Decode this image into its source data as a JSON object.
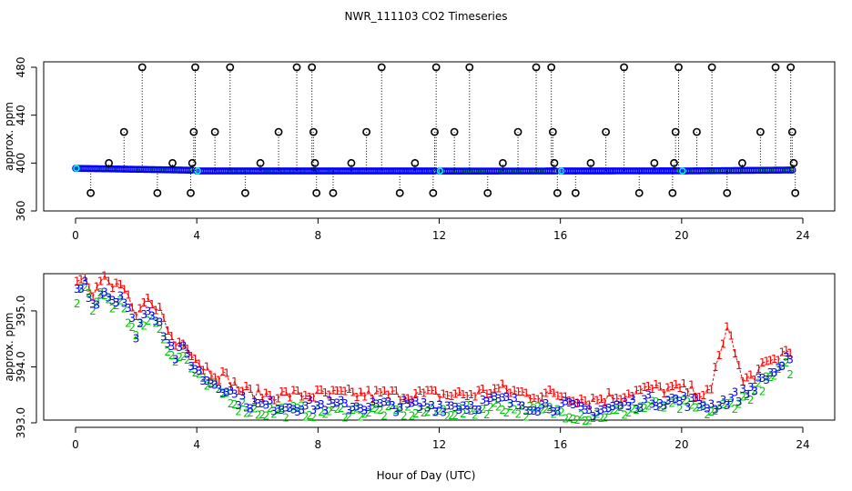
{
  "title": "NWR_111103  CO2 Timeseries",
  "xlabel": "Hour of Day (UTC)",
  "colors": {
    "series1": "#ff0000",
    "series2": "#00c800",
    "series3": "#0000ff",
    "mid": "#00ffff",
    "frame": "#000000"
  },
  "chart_data": [
    {
      "type": "scatter",
      "panel": "top",
      "ylabel": "approx. ppm",
      "xlim": [
        0,
        24
      ],
      "ylim": [
        360,
        480
      ],
      "xticks": [
        "0",
        "4",
        "8",
        "12",
        "16",
        "20",
        "24"
      ],
      "yticks": [
        "360",
        "400",
        "440",
        "480"
      ],
      "baseline_segments": [
        {
          "x0": 0.0,
          "x1": 3.9,
          "y0": 395.6,
          "y1": 394.0
        },
        {
          "x0": 4.0,
          "x1": 11.9,
          "y0": 393.4,
          "y1": 393.4
        },
        {
          "x0": 12.0,
          "x1": 15.9,
          "y0": 393.3,
          "y1": 393.4
        },
        {
          "x0": 16.0,
          "x1": 19.9,
          "y0": 393.4,
          "y1": 393.5
        },
        {
          "x0": 20.0,
          "x1": 23.7,
          "y0": 393.4,
          "y1": 394.2
        }
      ],
      "outliers": [
        {
          "x": 0.5,
          "y": 375
        },
        {
          "x": 1.1,
          "y": 400
        },
        {
          "x": 1.6,
          "y": 426
        },
        {
          "x": 2.2,
          "y": 480
        },
        {
          "x": 2.7,
          "y": 375
        },
        {
          "x": 3.2,
          "y": 400
        },
        {
          "x": 3.8,
          "y": 375
        },
        {
          "x": 3.85,
          "y": 400
        },
        {
          "x": 3.9,
          "y": 426
        },
        {
          "x": 3.95,
          "y": 480
        },
        {
          "x": 4.6,
          "y": 426
        },
        {
          "x": 5.1,
          "y": 480
        },
        {
          "x": 5.6,
          "y": 375
        },
        {
          "x": 6.1,
          "y": 400
        },
        {
          "x": 6.7,
          "y": 426
        },
        {
          "x": 7.3,
          "y": 480
        },
        {
          "x": 7.8,
          "y": 480
        },
        {
          "x": 7.85,
          "y": 426
        },
        {
          "x": 7.9,
          "y": 400
        },
        {
          "x": 7.95,
          "y": 375
        },
        {
          "x": 8.5,
          "y": 375
        },
        {
          "x": 9.1,
          "y": 400
        },
        {
          "x": 9.6,
          "y": 426
        },
        {
          "x": 10.1,
          "y": 480
        },
        {
          "x": 10.7,
          "y": 375
        },
        {
          "x": 11.2,
          "y": 400
        },
        {
          "x": 11.8,
          "y": 375
        },
        {
          "x": 11.85,
          "y": 426
        },
        {
          "x": 11.9,
          "y": 480
        },
        {
          "x": 12.5,
          "y": 426
        },
        {
          "x": 13.0,
          "y": 480
        },
        {
          "x": 13.6,
          "y": 375
        },
        {
          "x": 14.1,
          "y": 400
        },
        {
          "x": 14.6,
          "y": 426
        },
        {
          "x": 15.2,
          "y": 480
        },
        {
          "x": 15.7,
          "y": 480
        },
        {
          "x": 15.75,
          "y": 426
        },
        {
          "x": 15.8,
          "y": 400
        },
        {
          "x": 15.9,
          "y": 375
        },
        {
          "x": 16.5,
          "y": 375
        },
        {
          "x": 17.0,
          "y": 400
        },
        {
          "x": 17.5,
          "y": 426
        },
        {
          "x": 18.1,
          "y": 480
        },
        {
          "x": 18.6,
          "y": 375
        },
        {
          "x": 19.1,
          "y": 400
        },
        {
          "x": 19.7,
          "y": 375
        },
        {
          "x": 19.75,
          "y": 400
        },
        {
          "x": 19.8,
          "y": 426
        },
        {
          "x": 19.9,
          "y": 480
        },
        {
          "x": 20.5,
          "y": 426
        },
        {
          "x": 21.0,
          "y": 480
        },
        {
          "x": 21.5,
          "y": 375
        },
        {
          "x": 22.0,
          "y": 400
        },
        {
          "x": 22.6,
          "y": 426
        },
        {
          "x": 23.1,
          "y": 480
        },
        {
          "x": 23.6,
          "y": 480
        },
        {
          "x": 23.65,
          "y": 426
        },
        {
          "x": 23.7,
          "y": 400
        },
        {
          "x": 23.75,
          "y": 375
        }
      ]
    },
    {
      "type": "scatter",
      "panel": "bottom",
      "ylabel": "approx. ppm",
      "xlim": [
        0,
        24
      ],
      "ylim": [
        393.0,
        395.6
      ],
      "xticks": [
        "0",
        "4",
        "8",
        "12",
        "16",
        "20",
        "24"
      ],
      "yticks": [
        "393.0",
        "394.0",
        "395.0"
      ],
      "series": [
        {
          "name": "1",
          "offset": 0.2
        },
        {
          "name": "2",
          "offset": -0.1
        },
        {
          "name": "3",
          "offset": 0.0
        }
      ],
      "trend": [
        {
          "x": 0.0,
          "y": 395.3
        },
        {
          "x": 0.3,
          "y": 395.5
        },
        {
          "x": 0.6,
          "y": 395.1
        },
        {
          "x": 0.9,
          "y": 395.4
        },
        {
          "x": 1.2,
          "y": 395.2
        },
        {
          "x": 1.5,
          "y": 395.3
        },
        {
          "x": 1.8,
          "y": 394.9
        },
        {
          "x": 2.0,
          "y": 394.6
        },
        {
          "x": 2.2,
          "y": 394.9
        },
        {
          "x": 2.5,
          "y": 395.0
        },
        {
          "x": 2.8,
          "y": 394.8
        },
        {
          "x": 3.0,
          "y": 394.5
        },
        {
          "x": 3.3,
          "y": 394.2
        },
        {
          "x": 3.6,
          "y": 394.3
        },
        {
          "x": 3.9,
          "y": 394.0
        },
        {
          "x": 4.2,
          "y": 393.8
        },
        {
          "x": 4.6,
          "y": 393.7
        },
        {
          "x": 5.0,
          "y": 393.6
        },
        {
          "x": 5.4,
          "y": 393.4
        },
        {
          "x": 6.0,
          "y": 393.3
        },
        {
          "x": 7.0,
          "y": 393.3
        },
        {
          "x": 8.0,
          "y": 393.3
        },
        {
          "x": 9.0,
          "y": 393.3
        },
        {
          "x": 10.0,
          "y": 393.3
        },
        {
          "x": 11.0,
          "y": 393.3
        },
        {
          "x": 12.0,
          "y": 393.3
        },
        {
          "x": 13.0,
          "y": 393.3
        },
        {
          "x": 14.0,
          "y": 393.4
        },
        {
          "x": 15.0,
          "y": 393.3
        },
        {
          "x": 16.0,
          "y": 393.3
        },
        {
          "x": 17.0,
          "y": 393.2
        },
        {
          "x": 18.0,
          "y": 393.3
        },
        {
          "x": 19.0,
          "y": 393.4
        },
        {
          "x": 20.0,
          "y": 393.4
        },
        {
          "x": 21.0,
          "y": 393.3
        },
        {
          "x": 21.5,
          "y": 393.4
        },
        {
          "x": 22.0,
          "y": 393.5
        },
        {
          "x": 22.5,
          "y": 393.7
        },
        {
          "x": 23.0,
          "y": 393.9
        },
        {
          "x": 23.5,
          "y": 394.1
        },
        {
          "x": 23.7,
          "y": 394.0
        }
      ],
      "spike": [
        {
          "x": 21.0,
          "y": 393.8
        },
        {
          "x": 21.3,
          "y": 394.3
        },
        {
          "x": 21.5,
          "y": 394.7
        },
        {
          "x": 21.7,
          "y": 394.4
        },
        {
          "x": 21.9,
          "y": 394.0
        }
      ]
    }
  ]
}
